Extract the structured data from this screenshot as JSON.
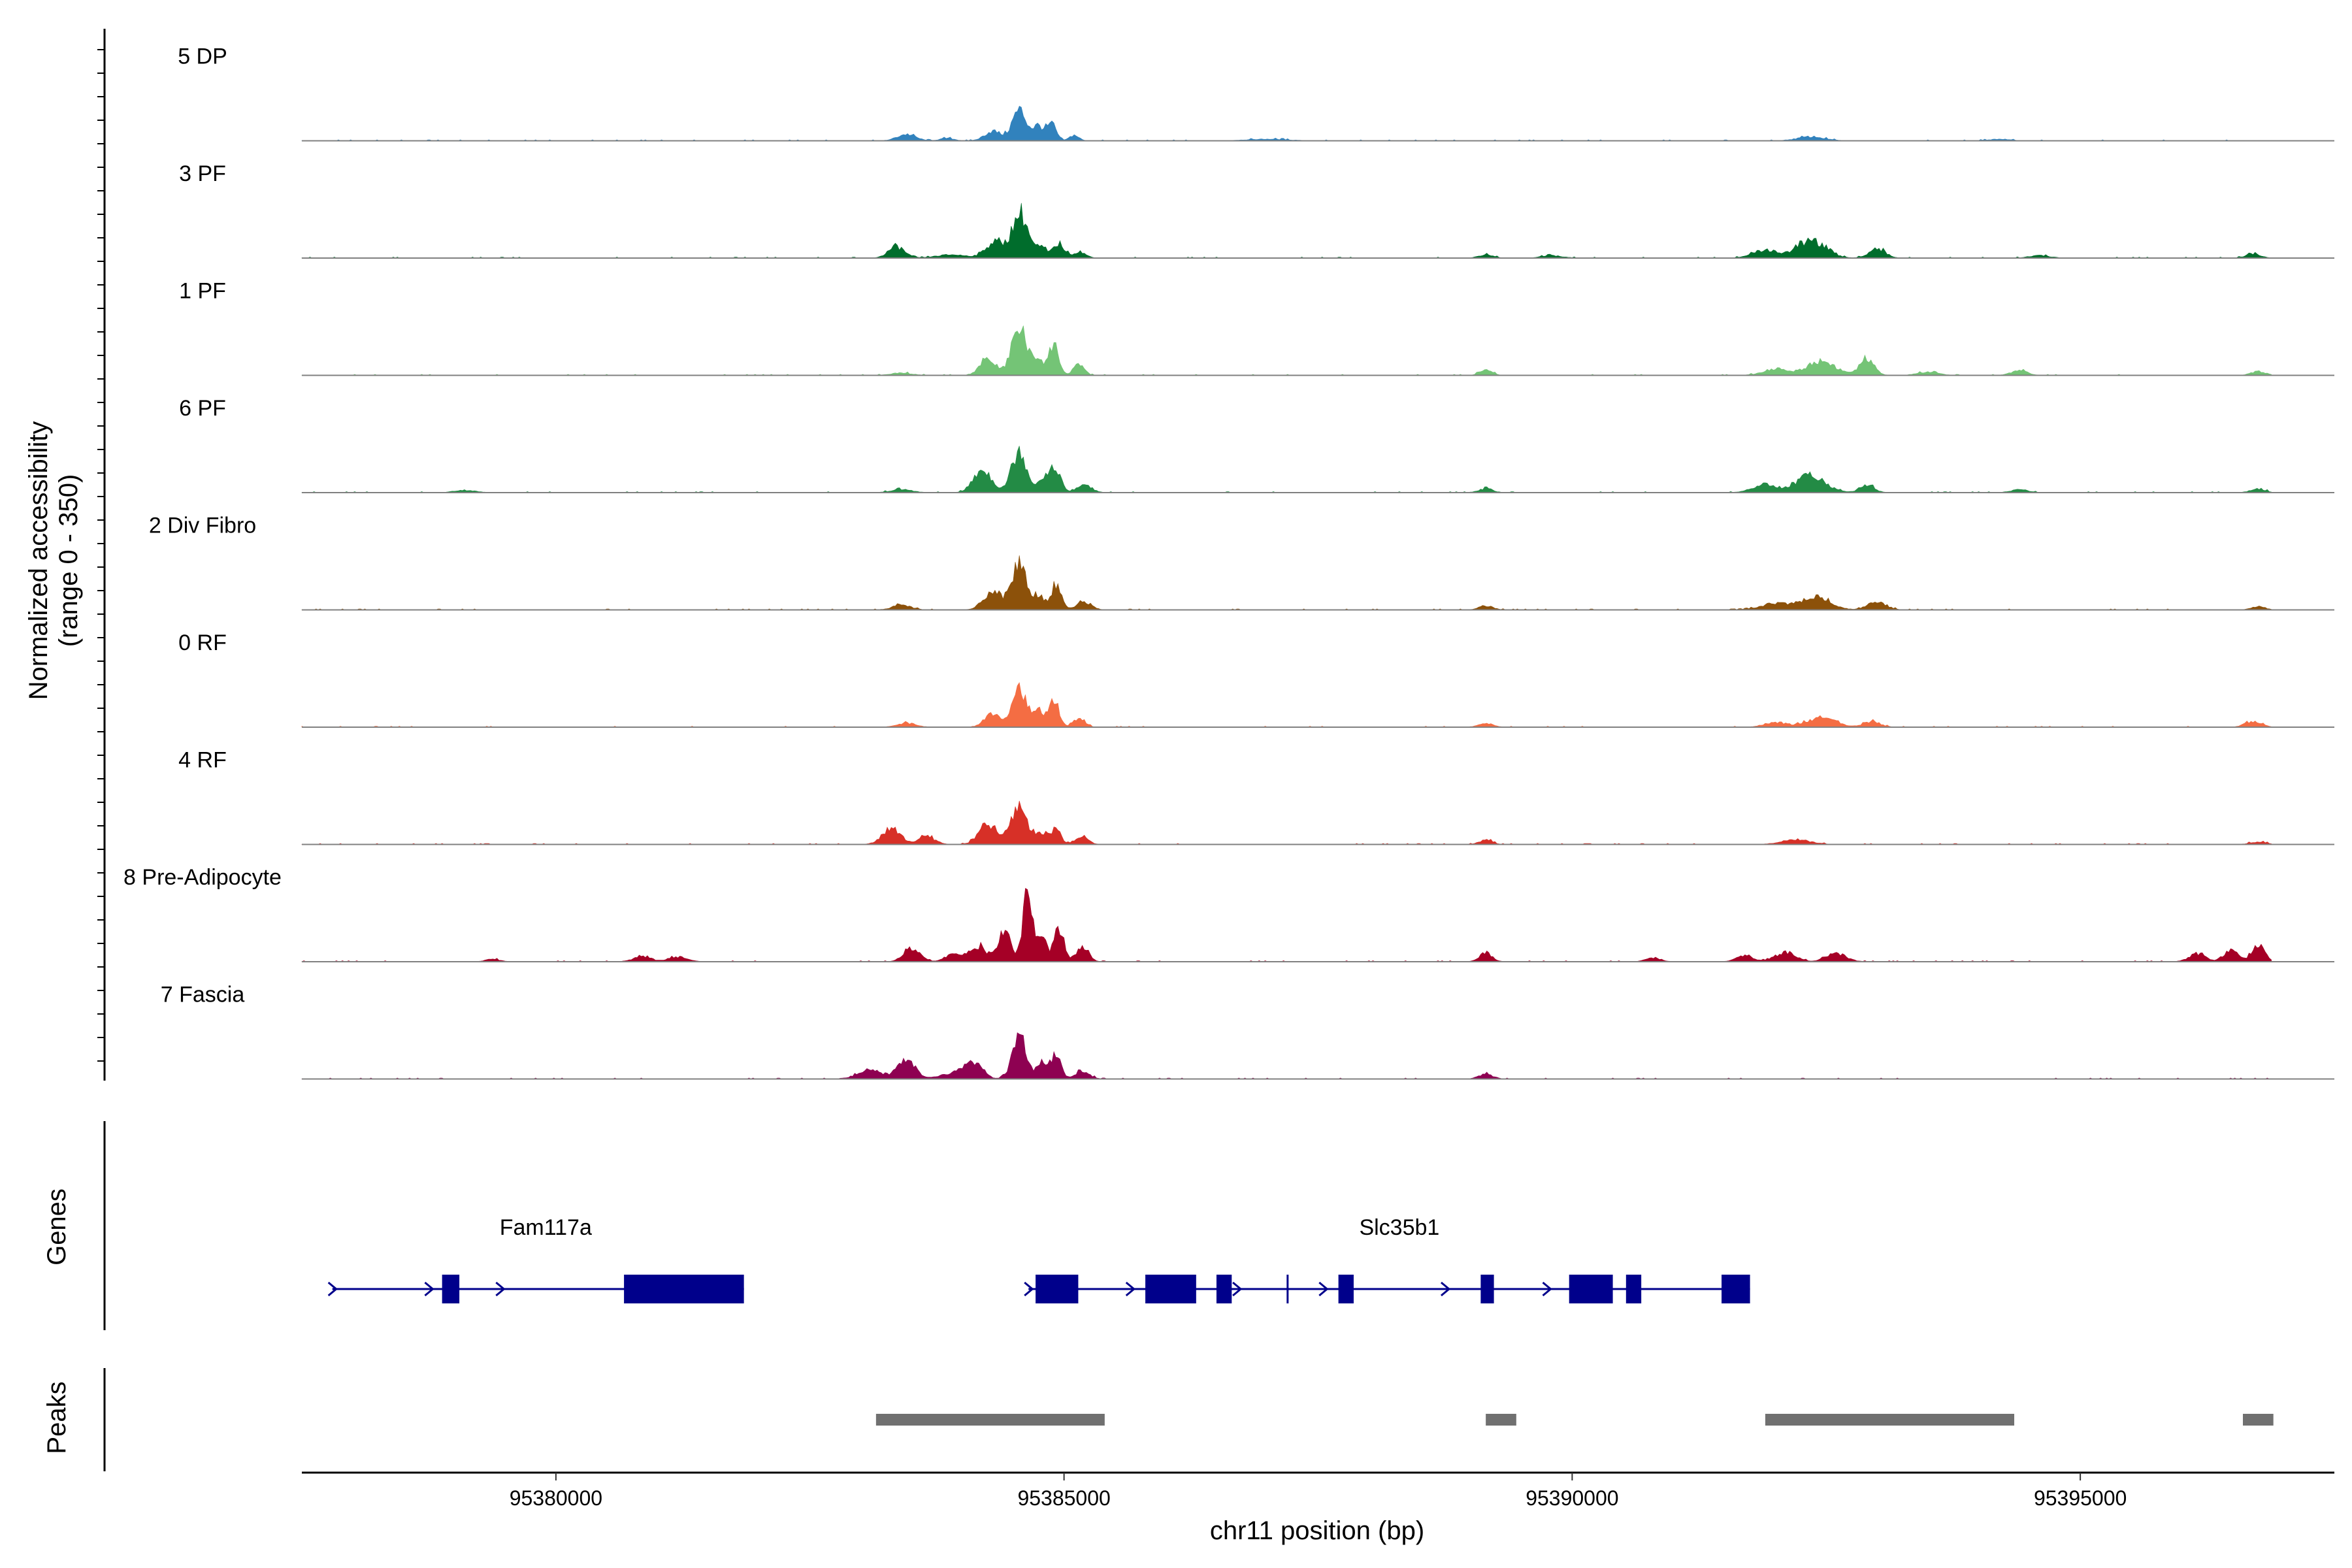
{
  "chart_data": {
    "type": "area",
    "title": "",
    "y_axis_label_line1": "Normalized accessibility",
    "y_axis_label_line2": "(range 0 - 350)",
    "xlabel": "chr11 position (bp)",
    "xlim": [
      95377500,
      95397500
    ],
    "y_range": [
      0,
      350
    ],
    "x_ticks": [
      95380000,
      95385000,
      95390000,
      95395000
    ],
    "x_tick_labels": [
      "95380000",
      "95385000",
      "95390000",
      "95395000"
    ],
    "genes_label": "Genes",
    "peaks_label": "Peaks",
    "tracks": [
      {
        "name": "5 DP",
        "color": "#3182BD",
        "peaks": [
          [
            95383450,
            8,
            90
          ],
          [
            95383850,
            3,
            70
          ],
          [
            95384300,
            12,
            80
          ],
          [
            95384560,
            38,
            70
          ],
          [
            95384750,
            18,
            55
          ],
          [
            95384880,
            20,
            45
          ],
          [
            95385100,
            7,
            45
          ],
          [
            95387000,
            2,
            200
          ],
          [
            95392350,
            5,
            130
          ],
          [
            95394200,
            2,
            100
          ]
        ]
      },
      {
        "name": "3 PF",
        "color": "#006D2C",
        "peaks": [
          [
            95383350,
            14,
            80
          ],
          [
            95383900,
            4,
            150
          ],
          [
            95384320,
            20,
            90
          ],
          [
            95384570,
            55,
            80
          ],
          [
            95384780,
            12,
            50
          ],
          [
            95384950,
            18,
            55
          ],
          [
            95385150,
            8,
            60
          ],
          [
            95389150,
            4,
            70
          ],
          [
            95389800,
            3,
            100
          ],
          [
            95391900,
            10,
            120
          ],
          [
            95392350,
            22,
            140
          ],
          [
            95393000,
            12,
            80
          ],
          [
            95394600,
            3,
            100
          ],
          [
            95396700,
            5,
            70
          ]
        ]
      },
      {
        "name": "1 PF",
        "color": "#74C476",
        "peaks": [
          [
            95383400,
            3,
            100
          ],
          [
            95384250,
            20,
            80
          ],
          [
            95384560,
            60,
            75
          ],
          [
            95384750,
            20,
            50
          ],
          [
            95384900,
            38,
            50
          ],
          [
            95385150,
            14,
            50
          ],
          [
            95389150,
            7,
            60
          ],
          [
            95392000,
            8,
            120
          ],
          [
            95392450,
            18,
            140
          ],
          [
            95392900,
            20,
            70
          ],
          [
            95393500,
            4,
            100
          ],
          [
            95394400,
            6,
            80
          ],
          [
            95396750,
            5,
            70
          ]
        ]
      },
      {
        "name": "6 PF",
        "color": "#238B45",
        "peaks": [
          [
            95379100,
            3,
            100
          ],
          [
            95383400,
            4,
            100
          ],
          [
            95384200,
            28,
            90
          ],
          [
            95384560,
            52,
            75
          ],
          [
            95384800,
            20,
            50
          ],
          [
            95384920,
            30,
            50
          ],
          [
            95385200,
            10,
            70
          ],
          [
            95389150,
            5,
            70
          ],
          [
            95391900,
            10,
            120
          ],
          [
            95392350,
            22,
            140
          ],
          [
            95392900,
            10,
            70
          ],
          [
            95394400,
            4,
            80
          ],
          [
            95396750,
            5,
            70
          ]
        ]
      },
      {
        "name": "2 Div Fibro",
        "color": "#8C510A",
        "peaks": [
          [
            95383400,
            6,
            90
          ],
          [
            95384300,
            24,
            90
          ],
          [
            95384560,
            60,
            70
          ],
          [
            95384750,
            18,
            50
          ],
          [
            95384920,
            30,
            55
          ],
          [
            95385200,
            10,
            70
          ],
          [
            95389150,
            5,
            70
          ],
          [
            95392000,
            8,
            140
          ],
          [
            95392400,
            16,
            140
          ],
          [
            95393000,
            10,
            90
          ],
          [
            95396750,
            4,
            70
          ]
        ]
      },
      {
        "name": "0 RF",
        "color": "#F46D43",
        "peaks": [
          [
            95383450,
            5,
            90
          ],
          [
            95384300,
            18,
            80
          ],
          [
            95384560,
            50,
            70
          ],
          [
            95384760,
            20,
            50
          ],
          [
            95384900,
            32,
            50
          ],
          [
            95385150,
            12,
            55
          ],
          [
            95389150,
            5,
            70
          ],
          [
            95392000,
            6,
            110
          ],
          [
            95392450,
            12,
            140
          ],
          [
            95392950,
            7,
            80
          ],
          [
            95396700,
            7,
            80
          ]
        ]
      },
      {
        "name": "4 RF",
        "color": "#D73027",
        "peaks": [
          [
            95383300,
            20,
            90
          ],
          [
            95383650,
            10,
            80
          ],
          [
            95384250,
            24,
            90
          ],
          [
            95384560,
            48,
            80
          ],
          [
            95384780,
            15,
            50
          ],
          [
            95384920,
            20,
            50
          ],
          [
            95385180,
            10,
            60
          ],
          [
            95389150,
            6,
            60
          ],
          [
            95392200,
            6,
            140
          ],
          [
            95396750,
            3,
            80
          ]
        ]
      },
      {
        "name": "8 Pre-Adipocyte",
        "color": "#A50026",
        "peaks": [
          [
            95379380,
            3,
            70
          ],
          [
            95380850,
            6,
            90
          ],
          [
            95381200,
            6,
            90
          ],
          [
            95383500,
            16,
            80
          ],
          [
            95383900,
            8,
            80
          ],
          [
            95384150,
            20,
            90
          ],
          [
            95384420,
            40,
            60
          ],
          [
            95384640,
            90,
            45
          ],
          [
            95384780,
            30,
            50
          ],
          [
            95384950,
            38,
            50
          ],
          [
            95385180,
            18,
            60
          ],
          [
            95389150,
            12,
            60
          ],
          [
            95390800,
            5,
            70
          ],
          [
            95391700,
            8,
            80
          ],
          [
            95392100,
            12,
            100
          ],
          [
            95392600,
            10,
            100
          ],
          [
            95396150,
            10,
            80
          ],
          [
            95396480,
            14,
            70
          ],
          [
            95396750,
            22,
            60
          ]
        ]
      },
      {
        "name": "7 Fascia",
        "color": "#8E0152",
        "peaks": [
          [
            95383100,
            10,
            130
          ],
          [
            95383450,
            26,
            80
          ],
          [
            95384100,
            20,
            90
          ],
          [
            95384560,
            50,
            70
          ],
          [
            95384780,
            18,
            50
          ],
          [
            95384920,
            28,
            50
          ],
          [
            95385180,
            10,
            70
          ],
          [
            95389150,
            6,
            70
          ],
          [
            95383900,
            6,
            130
          ]
        ]
      }
    ],
    "genes": [
      {
        "name": "Fam117a",
        "label_x": 95379900,
        "start": 95377800,
        "end": 95381850,
        "strand": "+",
        "exons": [
          [
            95378880,
            95379050
          ],
          [
            95380670,
            95381850
          ]
        ],
        "arrows": [
          95377800,
          95378750,
          95379450
        ]
      },
      {
        "name": "Slc35b1",
        "label_x": 95388300,
        "start": 95384650,
        "end": 95391750,
        "strand": "+",
        "exons": [
          [
            95384720,
            95385140
          ],
          [
            95385800,
            95386300
          ],
          [
            95386500,
            95386650
          ],
          [
            95387700,
            95387850
          ],
          [
            95389100,
            95389230
          ],
          [
            95389970,
            95390400
          ],
          [
            95390530,
            95390680
          ],
          [
            95391470,
            95391750
          ]
        ],
        "introns_marks": [
          95387200
        ],
        "arrows": [
          95384650,
          95385650,
          95386700,
          95387550,
          95388750,
          95389750,
          95390150
        ]
      }
    ],
    "peak_regions": [
      [
        95383150,
        95385400
      ],
      [
        95389150,
        95389450
      ],
      [
        95391900,
        95394350
      ],
      [
        95396600,
        95396900
      ]
    ]
  }
}
